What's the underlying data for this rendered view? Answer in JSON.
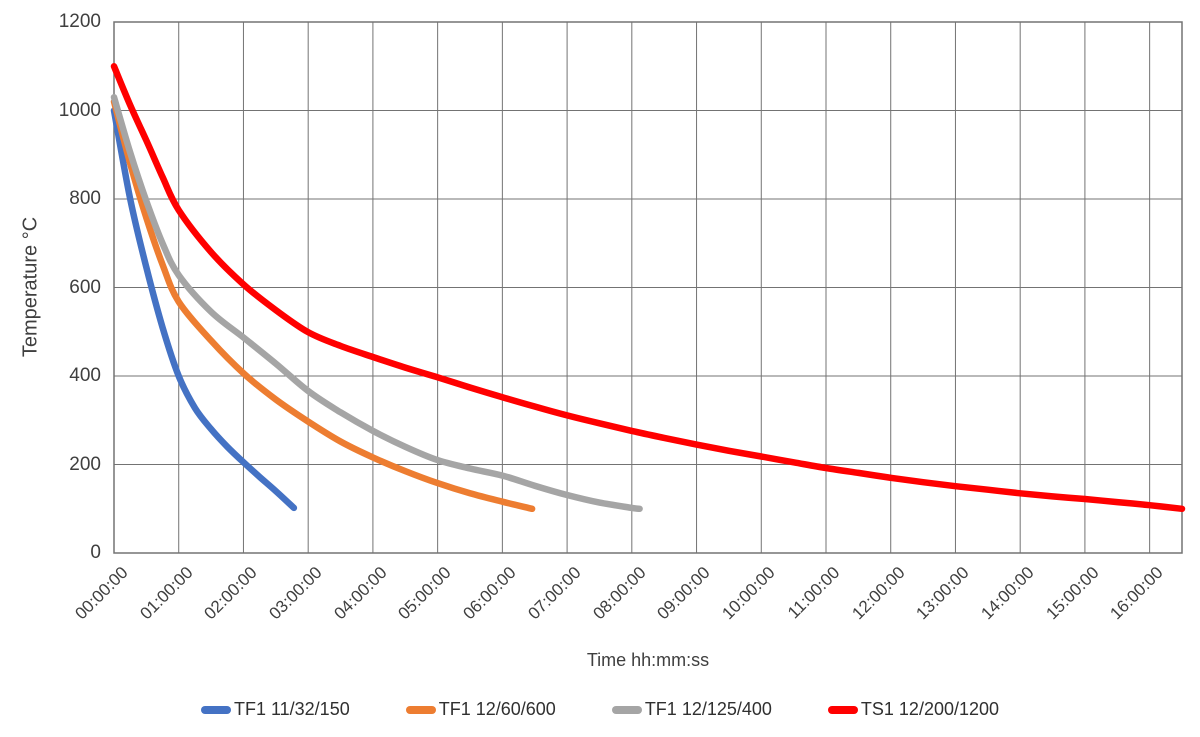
{
  "chart_data": {
    "type": "line",
    "title": "",
    "xlabel": "Time hh:mm:ss",
    "ylabel": "Temperature °C",
    "x_unit": "hours",
    "xlim": [
      0,
      16.5
    ],
    "ylim": [
      0,
      1200
    ],
    "grid": true,
    "legend_position": "bottom",
    "y_ticks": [
      {
        "value": 0,
        "label": "0"
      },
      {
        "value": 200,
        "label": "200"
      },
      {
        "value": 400,
        "label": "400"
      },
      {
        "value": 600,
        "label": "600"
      },
      {
        "value": 800,
        "label": "800"
      },
      {
        "value": 1000,
        "label": "1000"
      },
      {
        "value": 1200,
        "label": "1200"
      }
    ],
    "x_ticks": [
      {
        "value": 0,
        "label": "00:00:00"
      },
      {
        "value": 1,
        "label": "01:00:00"
      },
      {
        "value": 2,
        "label": "02:00:00"
      },
      {
        "value": 3,
        "label": "03:00:00"
      },
      {
        "value": 4,
        "label": "04:00:00"
      },
      {
        "value": 5,
        "label": "05:00:00"
      },
      {
        "value": 6,
        "label": "06:00:00"
      },
      {
        "value": 7,
        "label": "07:00:00"
      },
      {
        "value": 8,
        "label": "08:00:00"
      },
      {
        "value": 9,
        "label": "09:00:00"
      },
      {
        "value": 10,
        "label": "10:00:00"
      },
      {
        "value": 11,
        "label": "11:00:00"
      },
      {
        "value": 12,
        "label": "12:00:00"
      },
      {
        "value": 13,
        "label": "13:00:00"
      },
      {
        "value": 14,
        "label": "14:00:00"
      },
      {
        "value": 15,
        "label": "15:00:00"
      },
      {
        "value": 16,
        "label": "16:00:00"
      }
    ],
    "axis_color": "#737373",
    "text_color": "#3f3f3f",
    "series": [
      {
        "name": "TF1 11/32/150",
        "color": "#4472C4",
        "points": [
          [
            0,
            1000
          ],
          [
            0.25,
            800
          ],
          [
            0.5,
            645
          ],
          [
            0.75,
            510
          ],
          [
            1,
            400
          ],
          [
            1.25,
            328
          ],
          [
            1.5,
            280
          ],
          [
            1.75,
            240
          ],
          [
            2,
            205
          ],
          [
            2.25,
            172
          ],
          [
            2.5,
            140
          ],
          [
            2.78,
            102
          ]
        ]
      },
      {
        "name": "TF1 12/60/600",
        "color": "#ED7D31",
        "points": [
          [
            0,
            1020
          ],
          [
            0.25,
            880
          ],
          [
            0.5,
            757
          ],
          [
            0.75,
            652
          ],
          [
            1,
            568
          ],
          [
            1.5,
            480
          ],
          [
            2,
            406
          ],
          [
            2.5,
            347
          ],
          [
            3,
            297
          ],
          [
            3.5,
            252
          ],
          [
            4,
            216
          ],
          [
            4.5,
            185
          ],
          [
            5,
            158
          ],
          [
            5.5,
            135
          ],
          [
            6,
            116
          ],
          [
            6.46,
            100
          ]
        ]
      },
      {
        "name": "TF1 12/125/400",
        "color": "#A5A5A5",
        "points": [
          [
            0,
            1030
          ],
          [
            0.25,
            905
          ],
          [
            0.5,
            795
          ],
          [
            0.75,
            700
          ],
          [
            1,
            628
          ],
          [
            1.5,
            545
          ],
          [
            2,
            487
          ],
          [
            2.5,
            428
          ],
          [
            3,
            366
          ],
          [
            3.5,
            318
          ],
          [
            4,
            276
          ],
          [
            4.5,
            240
          ],
          [
            5,
            210
          ],
          [
            5.5,
            191
          ],
          [
            6,
            175
          ],
          [
            6.5,
            152
          ],
          [
            7,
            131
          ],
          [
            7.5,
            114
          ],
          [
            8,
            102
          ],
          [
            8.12,
            100
          ]
        ]
      },
      {
        "name": "TS1 12/200/1200",
        "color": "#FF0000",
        "points": [
          [
            0,
            1100
          ],
          [
            0.25,
            1012
          ],
          [
            0.5,
            932
          ],
          [
            0.75,
            850
          ],
          [
            1,
            775
          ],
          [
            1.5,
            680
          ],
          [
            2,
            607
          ],
          [
            2.5,
            549
          ],
          [
            3,
            499
          ],
          [
            3.5,
            468
          ],
          [
            4,
            443
          ],
          [
            4.5,
            419
          ],
          [
            5,
            397
          ],
          [
            5.5,
            374
          ],
          [
            6,
            352
          ],
          [
            6.5,
            331
          ],
          [
            7,
            311
          ],
          [
            7.5,
            293
          ],
          [
            8,
            276
          ],
          [
            8.5,
            260
          ],
          [
            9,
            245
          ],
          [
            9.5,
            231
          ],
          [
            10,
            218
          ],
          [
            10.5,
            205
          ],
          [
            11,
            192
          ],
          [
            11.5,
            181
          ],
          [
            12,
            170
          ],
          [
            12.5,
            160
          ],
          [
            13,
            151
          ],
          [
            13.5,
            143
          ],
          [
            14,
            135
          ],
          [
            14.5,
            128
          ],
          [
            15,
            122
          ],
          [
            15.5,
            115
          ],
          [
            16,
            108
          ],
          [
            16.5,
            100
          ]
        ]
      }
    ]
  }
}
